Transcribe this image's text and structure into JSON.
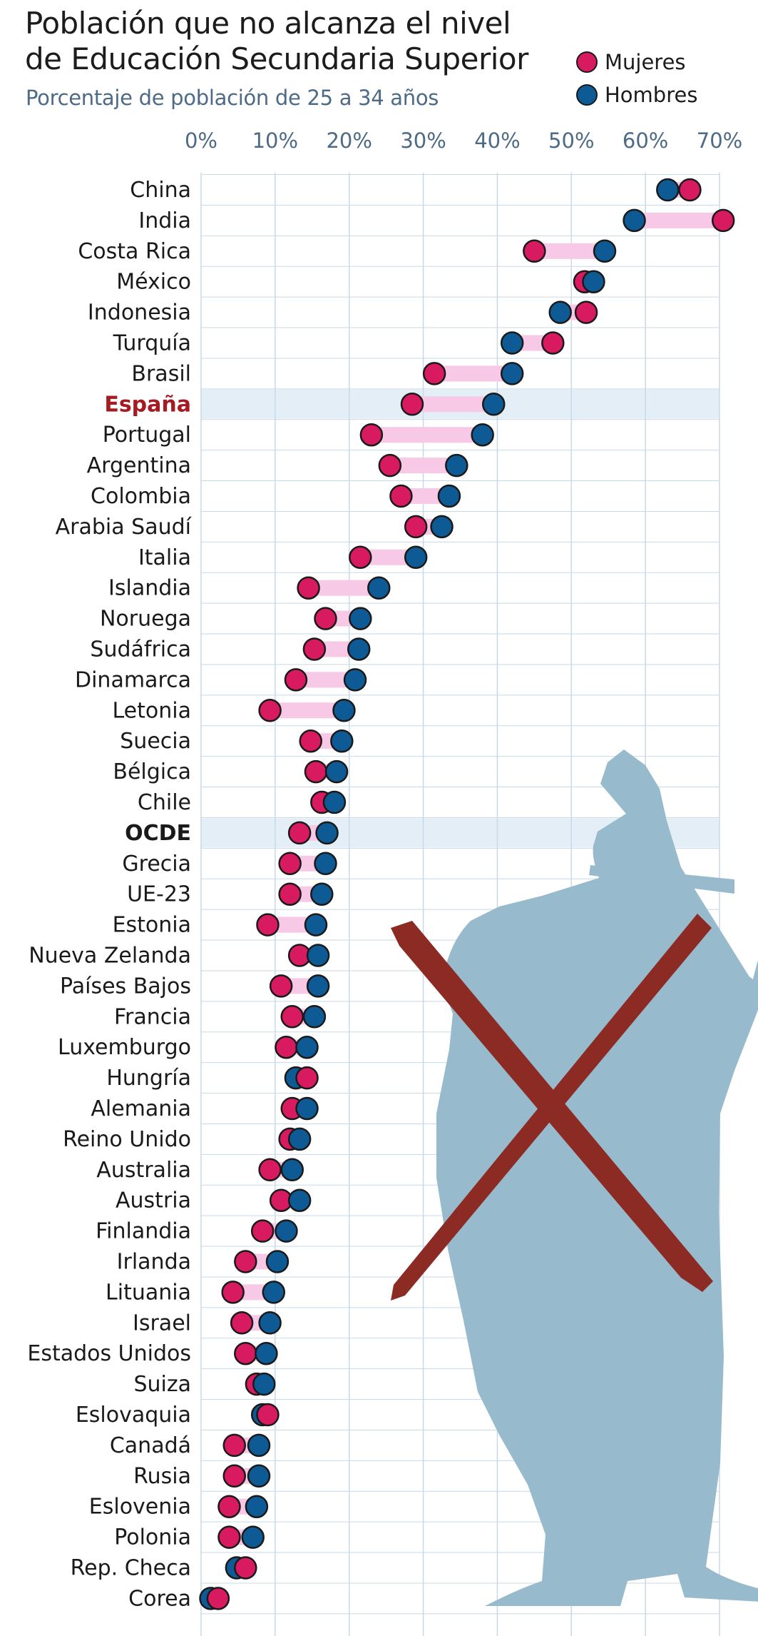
{
  "title_lines": [
    "Población que no alcanza el nivel",
    "de Educación Secundaria Superior"
  ],
  "subtitle": "Porcentaje de población de 25 a 34 años",
  "colors": {
    "mujeres": "#d81b60",
    "hombres": "#0d5a94",
    "range": "#f7c9e6",
    "highlight": "#e4eef6",
    "grid": "#c8d9e7",
    "spain": "#a61b22",
    "graduate": "#98bacd",
    "cross": "#8c2a24"
  },
  "legend": [
    {
      "label": "Mujeres",
      "color": "#d81b60"
    },
    {
      "label": "Hombres",
      "color": "#0d5a94"
    }
  ],
  "chart_data": {
    "type": "dot-range",
    "xlim": [
      0,
      70
    ],
    "x_ticks": [
      "0%",
      "10%",
      "20%",
      "30%",
      "40%",
      "50%",
      "60%",
      "70%"
    ],
    "series": [
      {
        "name": "Mujeres",
        "field": "mujeres"
      },
      {
        "name": "Hombres",
        "field": "hombres"
      }
    ],
    "rows": [
      {
        "country": "China",
        "mujeres": 66,
        "hombres": 63
      },
      {
        "country": "India",
        "mujeres": 70.5,
        "hombres": 58.5
      },
      {
        "country": "Costa Rica",
        "mujeres": 45,
        "hombres": 54.5
      },
      {
        "country": "México",
        "mujeres": 51.8,
        "hombres": 53
      },
      {
        "country": "Indonesia",
        "mujeres": 52,
        "hombres": 48.5
      },
      {
        "country": "Turquía",
        "mujeres": 47.5,
        "hombres": 42
      },
      {
        "country": "Brasil",
        "mujeres": 31.5,
        "hombres": 42
      },
      {
        "country": "España",
        "mujeres": 28.5,
        "hombres": 39.5,
        "highlight": true,
        "label_color": "#a61b22",
        "bold": true
      },
      {
        "country": "Portugal",
        "mujeres": 23,
        "hombres": 38
      },
      {
        "country": "Argentina",
        "mujeres": 25.5,
        "hombres": 34.5
      },
      {
        "country": "Colombia",
        "mujeres": 27,
        "hombres": 33.5
      },
      {
        "country": "Arabia Saudí",
        "mujeres": 29,
        "hombres": 32.5
      },
      {
        "country": "Italia",
        "mujeres": 21.5,
        "hombres": 29
      },
      {
        "country": "Islandia",
        "mujeres": 14.5,
        "hombres": 24
      },
      {
        "country": "Noruega",
        "mujeres": 16.8,
        "hombres": 21.5
      },
      {
        "country": "Sudáfrica",
        "mujeres": 15.3,
        "hombres": 21.3
      },
      {
        "country": "Dinamarca",
        "mujeres": 12.8,
        "hombres": 20.8
      },
      {
        "country": "Letonia",
        "mujeres": 9.3,
        "hombres": 19.3
      },
      {
        "country": "Suecia",
        "mujeres": 14.8,
        "hombres": 19
      },
      {
        "country": "Bélgica",
        "mujeres": 15.5,
        "hombres": 18.3
      },
      {
        "country": "Chile",
        "mujeres": 16.3,
        "hombres": 18
      },
      {
        "country": "OCDE",
        "mujeres": 13.3,
        "hombres": 17,
        "highlight": true,
        "bold": true
      },
      {
        "country": "Grecia",
        "mujeres": 12,
        "hombres": 16.8
      },
      {
        "country": "UE-23",
        "mujeres": 12,
        "hombres": 16.3
      },
      {
        "country": "Estonia",
        "mujeres": 9,
        "hombres": 15.5
      },
      {
        "country": "Nueva Zelanda",
        "mujeres": 13.3,
        "hombres": 15.8
      },
      {
        "country": "Países Bajos",
        "mujeres": 10.8,
        "hombres": 15.8
      },
      {
        "country": "Francia",
        "mujeres": 12.3,
        "hombres": 15.3
      },
      {
        "country": "Luxemburgo",
        "mujeres": 11.5,
        "hombres": 14.3
      },
      {
        "country": "Hungría",
        "mujeres": 14.3,
        "hombres": 12.8
      },
      {
        "country": "Alemania",
        "mujeres": 12.3,
        "hombres": 14.3
      },
      {
        "country": "Reino Unido",
        "mujeres": 12,
        "hombres": 13.3
      },
      {
        "country": "Australia",
        "mujeres": 9.3,
        "hombres": 12.3
      },
      {
        "country": "Austria",
        "mujeres": 10.8,
        "hombres": 13.3
      },
      {
        "country": "Finlandia",
        "mujeres": 8.3,
        "hombres": 11.5
      },
      {
        "country": "Irlanda",
        "mujeres": 6,
        "hombres": 10.3
      },
      {
        "country": "Lituania",
        "mujeres": 4.3,
        "hombres": 9.8
      },
      {
        "country": "Israel",
        "mujeres": 5.5,
        "hombres": 9.3
      },
      {
        "country": "Estados Unidos",
        "mujeres": 6,
        "hombres": 8.8
      },
      {
        "country": "Suiza",
        "mujeres": 7.5,
        "hombres": 8.5
      },
      {
        "country": "Eslovaquia",
        "mujeres": 9,
        "hombres": 8.3
      },
      {
        "country": "Canadá",
        "mujeres": 4.5,
        "hombres": 7.8
      },
      {
        "country": "Rusia",
        "mujeres": 4.5,
        "hombres": 7.8
      },
      {
        "country": "Eslovenia",
        "mujeres": 3.8,
        "hombres": 7.5
      },
      {
        "country": "Polonia",
        "mujeres": 3.8,
        "hombres": 7
      },
      {
        "country": "Rep. Checa",
        "mujeres": 6,
        "hombres": 4.8
      },
      {
        "country": "Corea",
        "mujeres": 2.3,
        "hombres": 1.3
      }
    ]
  }
}
